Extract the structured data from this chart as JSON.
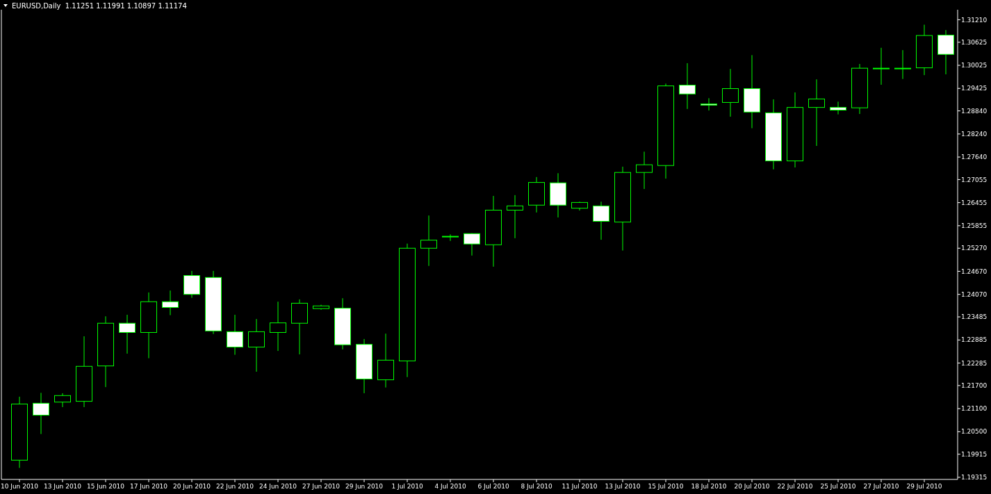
{
  "chart_data": {
    "type": "candlestick",
    "title": "EURUSD,Daily  1.11251 1.11991 1.10897 1.11174",
    "categories": [
      "10 Jun 2010",
      null,
      "13 Jun 2010",
      null,
      "15 Jun 2010",
      null,
      "17 Jun 2010",
      null,
      "20 Jun 2010",
      null,
      "22 Jun 2010",
      null,
      "24 Jun 2010",
      null,
      "27 Jun 2010",
      null,
      "29 Jun 2010",
      null,
      "1 Jul 2010",
      null,
      "4 Jul 2010",
      null,
      "6 Jul 2010",
      null,
      "8 Jul 2010",
      null,
      "11 Jul 2010",
      null,
      "13 Jul 2010",
      null,
      "15 Jul 2010",
      null,
      "18 Jul 2010",
      null,
      "20 Jul 2010",
      null,
      "22 Jul 2010",
      null,
      "25 Jul 2010",
      null,
      "27 Jul 2010",
      null,
      "29 Jul 2010",
      null
    ],
    "ohlc": [
      [
        1.1976,
        1.2141,
        1.1956,
        1.2122
      ],
      [
        1.2124,
        1.2151,
        1.2044,
        1.2093
      ],
      [
        1.2127,
        1.215,
        1.2114,
        1.2144
      ],
      [
        1.2129,
        1.2298,
        1.2114,
        1.222
      ],
      [
        1.2221,
        1.235,
        1.2166,
        1.2332
      ],
      [
        1.2332,
        1.2354,
        1.2253,
        1.2308
      ],
      [
        1.2308,
        1.2412,
        1.2241,
        1.2388
      ],
      [
        1.2388,
        1.2417,
        1.2353,
        1.2373
      ],
      [
        1.2456,
        1.2468,
        1.2398,
        1.2407
      ],
      [
        1.2451,
        1.2468,
        1.2304,
        1.2312
      ],
      [
        1.231,
        1.2354,
        1.225,
        1.227
      ],
      [
        1.227,
        1.2343,
        1.2206,
        1.231
      ],
      [
        1.2308,
        1.2388,
        1.226,
        1.2333
      ],
      [
        1.2332,
        1.2394,
        1.2251,
        1.2384
      ],
      [
        1.237,
        1.238,
        1.2367,
        1.2377
      ],
      [
        1.2371,
        1.2397,
        1.2264,
        1.2276
      ],
      [
        1.2277,
        1.2291,
        1.215,
        1.2187
      ],
      [
        1.2185,
        1.2305,
        1.2165,
        1.2236
      ],
      [
        1.2234,
        1.2539,
        1.2192,
        1.2527
      ],
      [
        1.2527,
        1.2612,
        1.2481,
        1.2548
      ],
      [
        1.2558,
        1.2563,
        1.2546,
        1.2558
      ],
      [
        1.2565,
        1.2566,
        1.2508,
        1.2538
      ],
      [
        1.2536,
        1.2663,
        1.2479,
        1.2626
      ],
      [
        1.2626,
        1.2665,
        1.2553,
        1.2637
      ],
      [
        1.2639,
        1.2712,
        1.262,
        1.2698
      ],
      [
        1.2697,
        1.2722,
        1.2607,
        1.2639
      ],
      [
        1.2631,
        1.2648,
        1.2625,
        1.2646
      ],
      [
        1.2637,
        1.2648,
        1.2549,
        1.2597
      ],
      [
        1.2595,
        1.2739,
        1.2521,
        1.2724
      ],
      [
        1.2724,
        1.2778,
        1.2681,
        1.2744
      ],
      [
        1.2742,
        1.2955,
        1.2708,
        1.2949
      ],
      [
        1.2951,
        1.3008,
        1.2889,
        1.2928
      ],
      [
        1.2902,
        1.2917,
        1.2885,
        1.2899
      ],
      [
        1.2906,
        1.2993,
        1.2869,
        1.2942
      ],
      [
        1.2942,
        1.3029,
        1.2839,
        1.2881
      ],
      [
        1.2879,
        1.2914,
        1.2732,
        1.2754
      ],
      [
        1.2754,
        1.2932,
        1.2737,
        1.2893
      ],
      [
        1.2893,
        1.2966,
        1.2793,
        1.2915
      ],
      [
        1.2893,
        1.2908,
        1.2875,
        1.2886
      ],
      [
        1.2892,
        1.3006,
        1.2876,
        1.2995
      ],
      [
        1.2995,
        1.3048,
        1.2952,
        1.2995
      ],
      [
        1.2995,
        1.3042,
        1.2967,
        1.2995
      ],
      [
        1.2996,
        1.3108,
        1.2977,
        1.308
      ],
      [
        1.3081,
        1.3094,
        1.2979,
        1.3031
      ]
    ],
    "color": "#00ff00",
    "colors": [
      "#000000",
      "#ffffff",
      "#000000",
      "#000000",
      "#000000",
      "#ffffff",
      "#000000",
      "#ffffff",
      "#ffffff",
      "#ffffff",
      "#ffffff",
      "#000000",
      "#000000",
      "#000000",
      "#000000",
      "#ffffff",
      "#ffffff",
      "#000000",
      "#000000",
      "#000000",
      "#000000",
      "#ffffff",
      "#000000",
      "#000000",
      "#000000",
      "#ffffff",
      "#000000",
      "#ffffff",
      "#000000",
      "#000000",
      "#000000",
      "#ffffff",
      "#ffffff",
      "#000000",
      "#ffffff",
      "#ffffff",
      "#000000",
      "#000000",
      "#ffffff",
      "#000000",
      "#000000",
      "#000000",
      "#000000",
      "#ffffff"
    ],
    "ylim": [
      1.1926,
      1.3147
    ],
    "yticks": [
      {
        "value": 1.3121,
        "label": "1.31210"
      },
      1.30625,
      {
        "value": 1.30025,
        "label": "1.30025"
      },
      1.29425,
      {
        "value": 1.2884,
        "label": "1.28840"
      },
      {
        "value": 1.2824,
        "label": "1.28240"
      },
      {
        "value": 1.2764,
        "label": "1.27640"
      },
      1.27055,
      1.26455,
      1.25855,
      {
        "value": 1.2527,
        "label": "1.25270"
      },
      {
        "value": 1.2467,
        "label": "1.24670"
      },
      {
        "value": 1.2407,
        "label": "1.24070"
      },
      1.23485,
      1.22885,
      1.22285,
      {
        "value": 1.217,
        "label": "1.21700"
      },
      {
        "value": 1.211,
        "label": "1.21100"
      },
      {
        "value": 1.205,
        "label": "1.20500"
      },
      1.19915,
      1.19315
    ]
  }
}
